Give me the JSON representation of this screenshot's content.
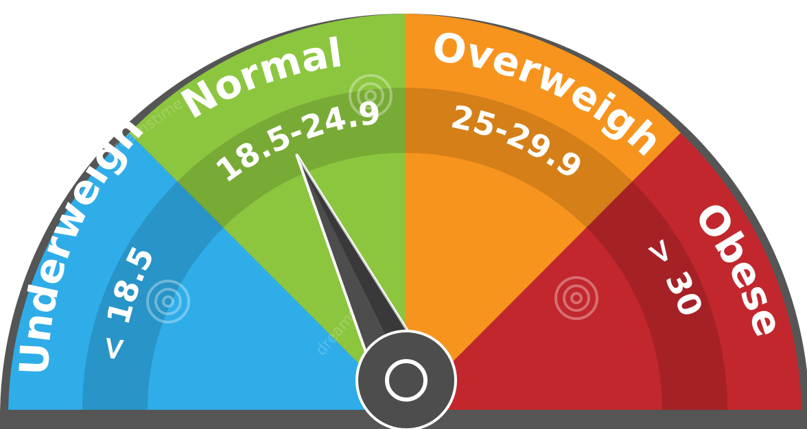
{
  "gauge": {
    "segments": [
      {
        "label": "Underweight",
        "range": "< 18.5",
        "color": "#2fade8"
      },
      {
        "label": "Normal",
        "range": "18.5-24.9",
        "color": "#8cc63f"
      },
      {
        "label": "Overweight",
        "range": "25-29.9",
        "color": "#f7941d"
      },
      {
        "label": "Obese",
        "range": "> 30",
        "color": "#c1272d"
      }
    ],
    "frame_color": "#555555",
    "needle_color": "#4d4d4d",
    "needle_value": 18.5
  },
  "watermark": {
    "text": "dreamstime"
  }
}
